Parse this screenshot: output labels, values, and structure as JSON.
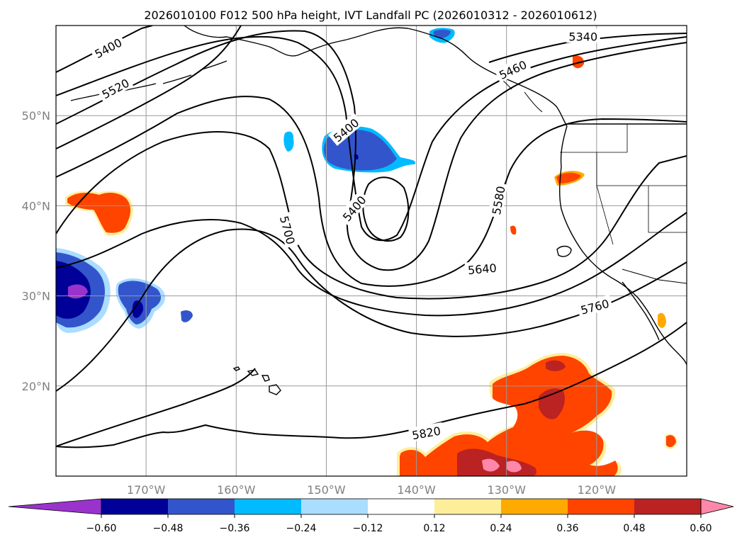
{
  "title": "2026010100 F012 500 hPa height, IVT Landfall PC (2026010312 - 2026010612)",
  "map": {
    "lon_range": [
      -180,
      -110
    ],
    "lat_range": [
      10,
      60
    ],
    "grid": true,
    "lat_ticks": [
      {
        "value": 50,
        "label": "50°N"
      },
      {
        "value": 40,
        "label": "40°N"
      },
      {
        "value": 30,
        "label": "30°N"
      },
      {
        "value": 20,
        "label": "20°N"
      }
    ],
    "lon_ticks": [
      {
        "value": -170,
        "label": "170°W"
      },
      {
        "value": -160,
        "label": "160°W"
      },
      {
        "value": -150,
        "label": "150°W"
      },
      {
        "value": -140,
        "label": "140°W"
      },
      {
        "value": -130,
        "label": "130°W"
      },
      {
        "value": -120,
        "label": "120°W"
      }
    ],
    "contour_labels": [
      {
        "text": "5400",
        "lon": -174.2,
        "lat": 57.5,
        "angle": -28
      },
      {
        "text": "5520",
        "lon": -173.4,
        "lat": 53.0,
        "angle": -28
      },
      {
        "text": "5340",
        "lon": -121.5,
        "lat": 58.8,
        "angle": 0
      },
      {
        "text": "5460",
        "lon": -129.3,
        "lat": 55.1,
        "angle": -25
      },
      {
        "text": "5400",
        "lon": -147.8,
        "lat": 48.4,
        "angle": -40
      },
      {
        "text": "5400",
        "lon": -146.9,
        "lat": 39.7,
        "angle": -50
      },
      {
        "text": "5700",
        "lon": -154.3,
        "lat": 37.3,
        "angle": 75
      },
      {
        "text": "5580",
        "lon": -130.9,
        "lat": 40.6,
        "angle": -80
      },
      {
        "text": "5640",
        "lon": -132.7,
        "lat": 33.0,
        "angle": -5
      },
      {
        "text": "5760",
        "lon": -120.2,
        "lat": 28.8,
        "angle": -15
      },
      {
        "text": "5820",
        "lon": -138.9,
        "lat": 14.8,
        "angle": -10
      }
    ]
  },
  "colorbar": {
    "ticks": [
      "−0.60",
      "−0.48",
      "−0.36",
      "−0.24",
      "−0.12",
      "0.12",
      "0.24",
      "0.36",
      "0.48",
      "0.60"
    ],
    "colors": [
      "#9933cc",
      "#000099",
      "#3355cc",
      "#00bbff",
      "#aaddff",
      "#ffffff",
      "#ffee99",
      "#ffaa00",
      "#ff4400",
      "#bb2222",
      "#ff88aa"
    ]
  }
}
